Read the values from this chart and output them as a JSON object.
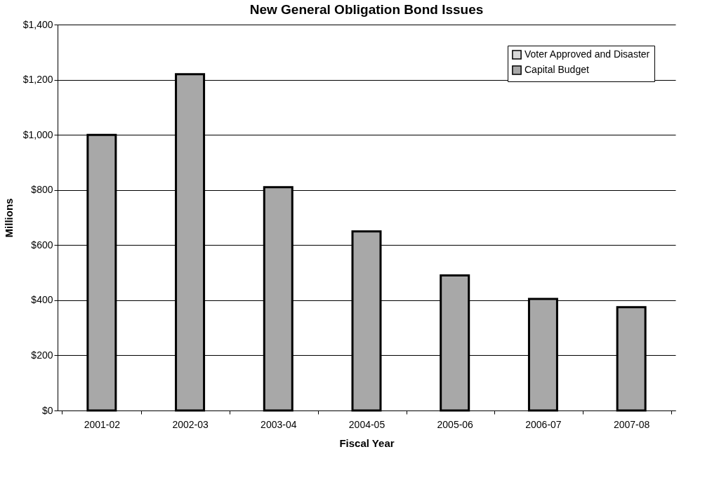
{
  "chart_data": {
    "type": "bar",
    "title": "New General Obligation Bond Issues",
    "xlabel": "Fiscal Year",
    "ylabel": "Millions",
    "categories": [
      "2001-02",
      "2002-03",
      "2003-04",
      "2004-05",
      "2005-06",
      "2006-07",
      "2007-08"
    ],
    "series": [
      {
        "name": "Voter Approved and Disaster",
        "color": "#d8d8d8",
        "values": [
          null,
          null,
          null,
          null,
          null,
          null,
          null
        ]
      },
      {
        "name": "Capital Budget",
        "color": "#a8a8a8",
        "values": [
          1000,
          1220,
          810,
          650,
          490,
          405,
          375
        ]
      }
    ],
    "ylim": [
      0,
      1400
    ],
    "yticks": [
      {
        "value": 0,
        "label": "$0"
      },
      {
        "value": 200,
        "label": "$200"
      },
      {
        "value": 400,
        "label": "$400"
      },
      {
        "value": 600,
        "label": "$600"
      },
      {
        "value": 800,
        "label": "$800"
      },
      {
        "value": 1000,
        "label": "$1,000"
      },
      {
        "value": 1200,
        "label": "$1,200"
      },
      {
        "value": 1400,
        "label": "$1,400"
      }
    ],
    "grid": "y",
    "legend": "top right"
  }
}
